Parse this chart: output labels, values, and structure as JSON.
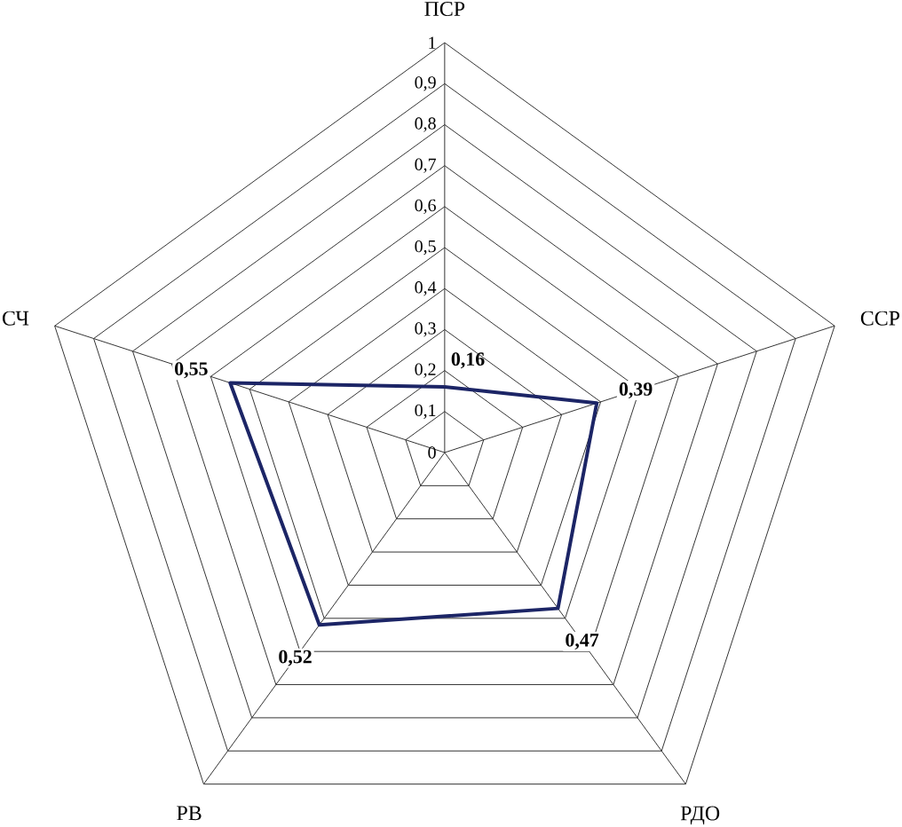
{
  "chart_data": {
    "type": "radar",
    "categories": [
      "ПСР",
      "ССР",
      "РДО",
      "РВ",
      "СЧ"
    ],
    "series": [
      {
        "color": "#1c2566",
        "values": [
          0.16,
          0.39,
          0.47,
          0.52,
          0.55
        ],
        "value_labels": [
          "0,16",
          "0,39",
          "0,47",
          "0,52",
          "0,55"
        ]
      }
    ],
    "ylim": [
      0,
      1
    ],
    "yticks": [
      0,
      {
        "value": 0.1,
        "label": "0,1"
      },
      {
        "value": 0.2,
        "label": "0,2"
      },
      {
        "value": 0.3,
        "label": "0,3"
      },
      {
        "value": 0.4,
        "label": "0,4"
      },
      {
        "value": 0.5,
        "label": "0,5"
      },
      {
        "value": 0.6,
        "label": "0,6"
      },
      {
        "value": 0.7,
        "label": "0,7"
      },
      {
        "value": 0.8,
        "label": "0,8"
      },
      {
        "value": 0.9,
        "label": "0,9"
      },
      1
    ],
    "grid": true
  }
}
